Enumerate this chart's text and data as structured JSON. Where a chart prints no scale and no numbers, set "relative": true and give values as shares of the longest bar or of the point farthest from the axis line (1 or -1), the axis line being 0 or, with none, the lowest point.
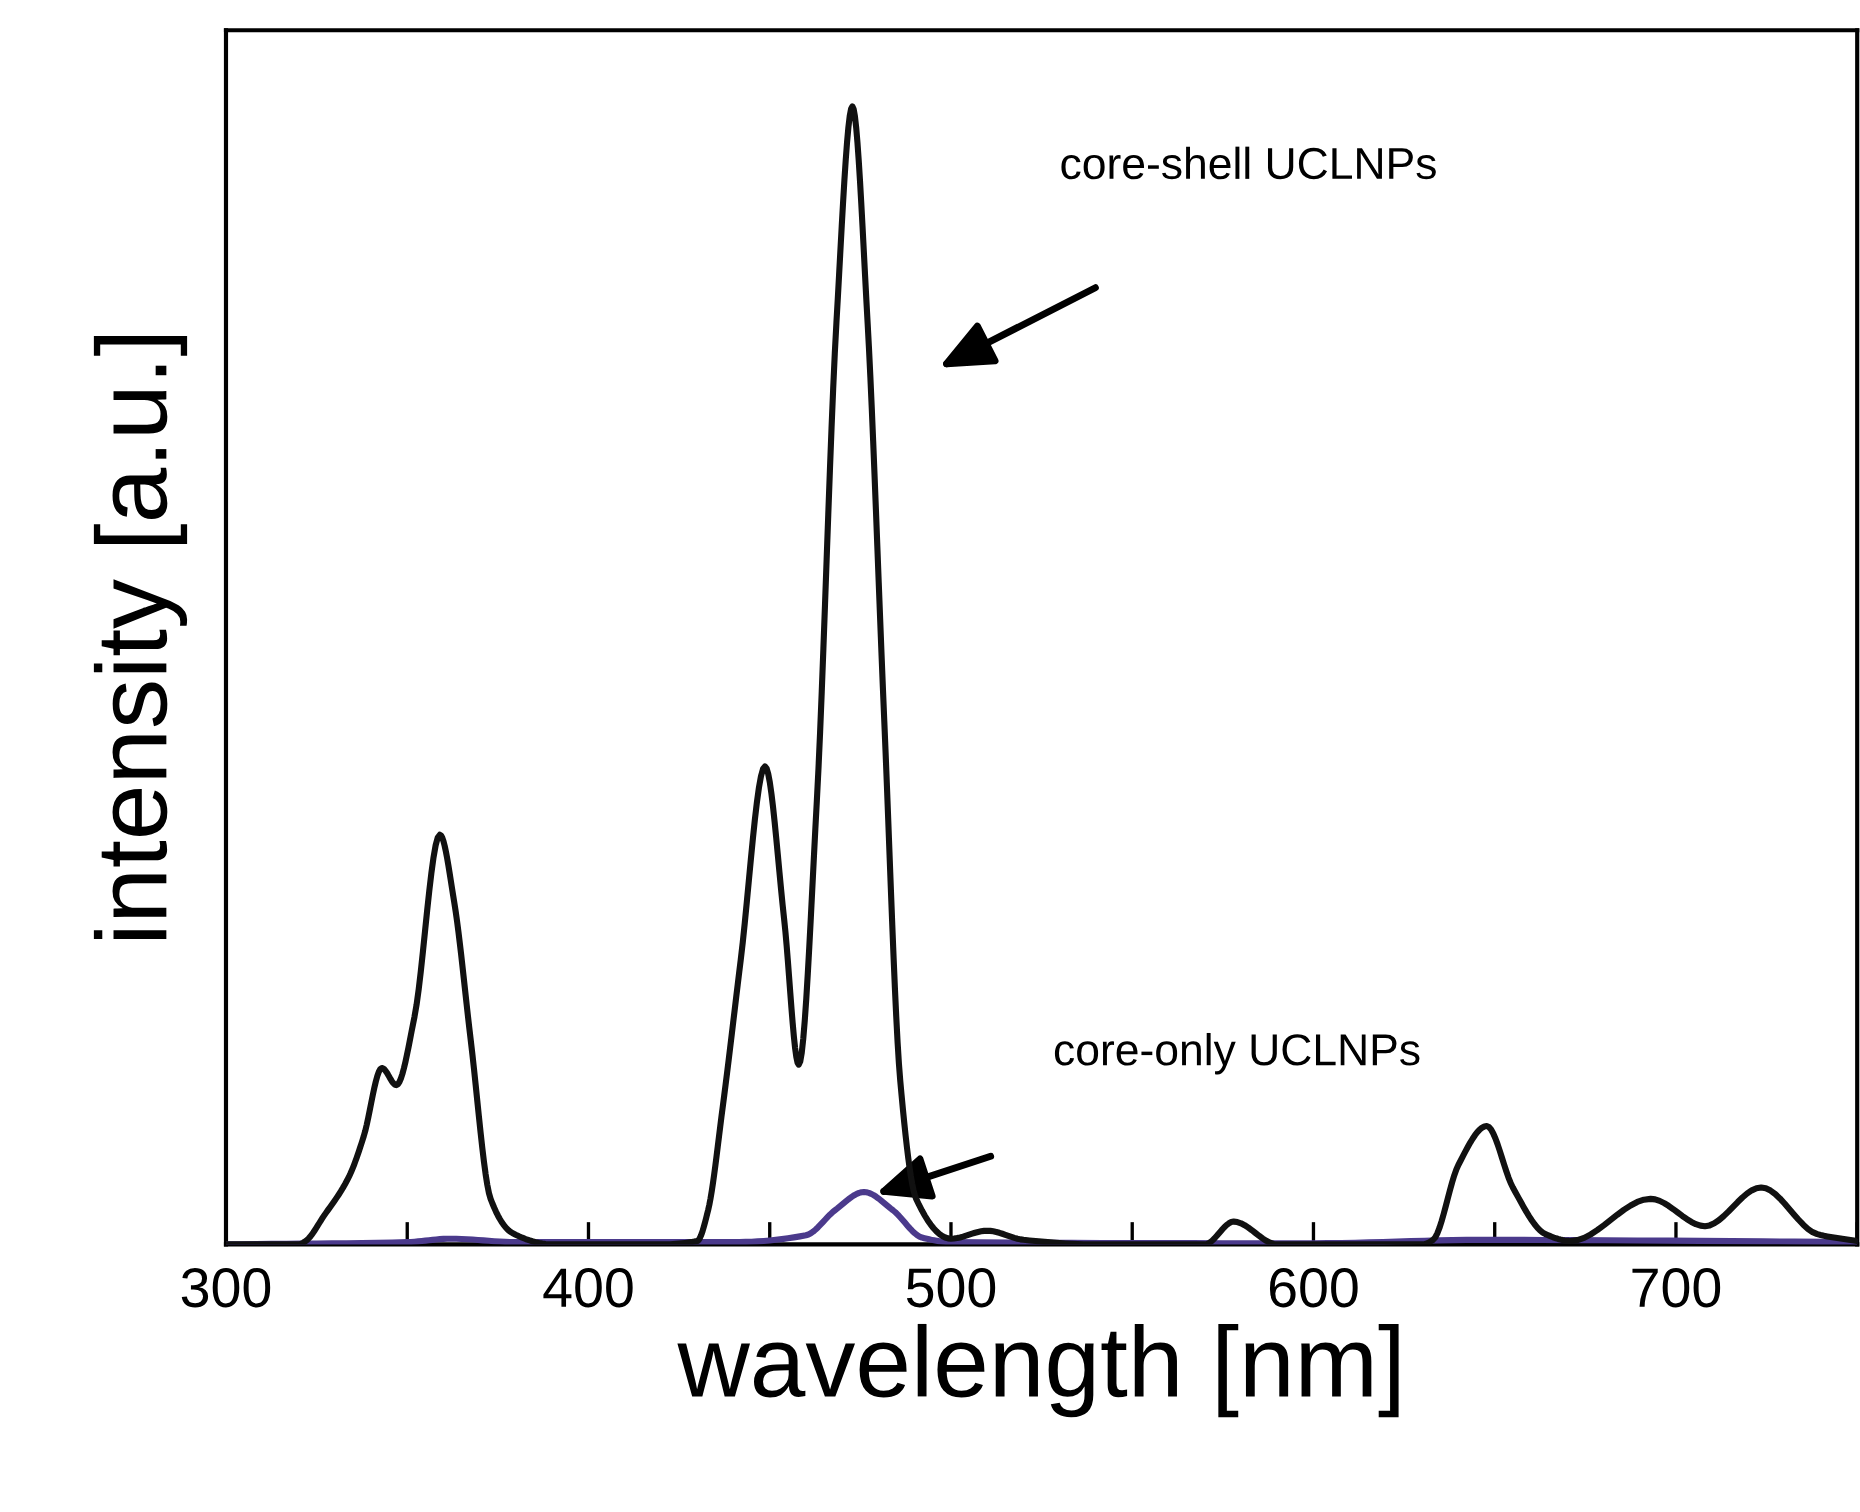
{
  "chart_data": {
    "type": "line",
    "relative": true,
    "xlabel": "wavelength [nm]",
    "ylabel": "intensity [a.u.]",
    "xlim": [
      300,
      750
    ],
    "xticks": [
      300,
      {
        "value": 350,
        "label": null
      },
      400,
      {
        "value": 450,
        "label": null
      },
      500,
      {
        "value": 550,
        "label": null
      },
      600,
      {
        "value": 650,
        "label": null
      },
      700,
      {
        "value": 750,
        "label": null
      }
    ],
    "grid": false,
    "legend": false,
    "marker": "none",
    "line_style": "solid",
    "series": [
      {
        "color": "#111111",
        "x": [
          300,
          320,
          322,
          327,
          334,
          338,
          343,
          347,
          352,
          359,
          363,
          367.5,
          373,
          379,
          390,
          420,
          430,
          433,
          437,
          442,
          448.7,
          454,
          458,
          463,
          468.4,
          472.8,
          477,
          481.6,
          486,
          490.4,
          500,
          510,
          520,
          540,
          570,
          578,
          590,
          630,
          633,
          640,
          647.8,
          655,
          664,
          671,
          693,
          708,
          723.5,
          739,
          750
        ],
        "values": [
          0,
          0,
          0.003,
          0.025,
          0.06,
          0.095,
          0.155,
          0.14,
          0.2,
          0.36,
          0.3,
          0.18,
          0.04,
          0.01,
          0,
          0,
          0.003,
          0.03,
          0.12,
          0.25,
          0.42,
          0.285,
          0.158,
          0.39,
          0.81,
          1.0,
          0.81,
          0.46,
          0.144,
          0.04,
          0.005,
          0.012,
          0.004,
          0,
          0,
          0.02,
          0,
          0,
          0.004,
          0.07,
          0.104,
          0.05,
          0.009,
          0.003,
          0.04,
          0.016,
          0.05,
          0.009,
          0.003
        ]
      },
      {
        "color": "#4b3a8c",
        "x": [
          300,
          350,
          362,
          380,
          440,
          460,
          468,
          476,
          484,
          492,
          500,
          600,
          646,
          750
        ],
        "values": [
          0,
          0.002,
          0.005,
          0.002,
          0.002,
          0.008,
          0.03,
          0.046,
          0.03,
          0.006,
          0.002,
          0.001,
          0.004,
          0.002
        ]
      }
    ],
    "annotations": [
      "core-shell UCLNPs",
      "core-only UCLNPs"
    ]
  }
}
